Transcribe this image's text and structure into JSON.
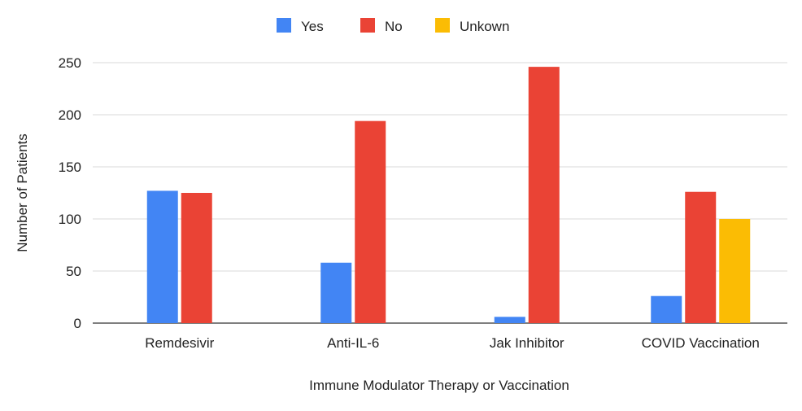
{
  "chart_data": {
    "type": "bar",
    "title": "",
    "xlabel": "Immune Modulator Therapy or Vaccination",
    "ylabel": "Number of Patients",
    "ylim": [
      0,
      250
    ],
    "yticks": [
      0,
      50,
      100,
      150,
      200,
      250
    ],
    "grid": true,
    "legend_position": "top",
    "categories": [
      "Remdesivir",
      "Anti-IL-6",
      "Jak Inhibitor",
      "COVID Vaccination"
    ],
    "series": [
      {
        "name": "Yes",
        "color": "#4285f4",
        "values": [
          127,
          58,
          6,
          26
        ]
      },
      {
        "name": "No",
        "color": "#ea4335",
        "values": [
          125,
          194,
          246,
          126
        ]
      },
      {
        "name": "Unkown",
        "color": "#fbbc04",
        "values": [
          0,
          0,
          0,
          100
        ]
      }
    ]
  }
}
